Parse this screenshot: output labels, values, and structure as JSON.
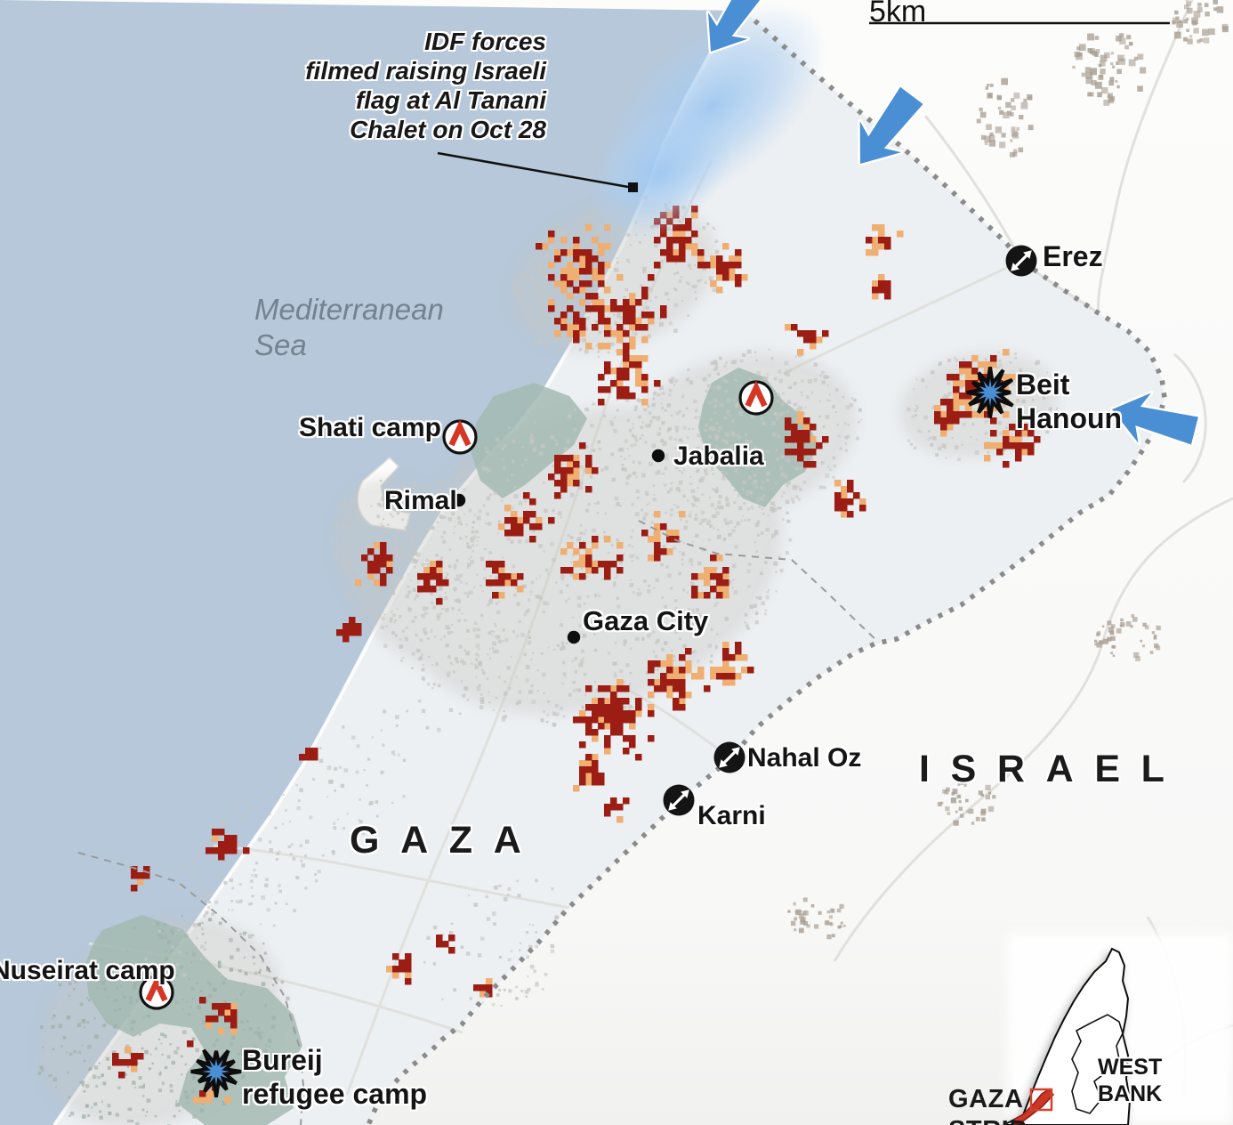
{
  "colors": {
    "sea": "#b6c8da",
    "gaza_land": "#edf0f3",
    "israel_land": "#fbfbfa",
    "destroyed": "#9c1d13",
    "damaged": "#efae72",
    "camp": "#a3bab1",
    "urban": "#c6c6c2",
    "town": "#a89e92",
    "border": "#8b8b8b",
    "road": "#e0e0dc",
    "arrow": "#4a8ed3",
    "chevron": "#d63625",
    "inset_red": "#cc3626"
  },
  "annotation": {
    "lines": [
      "IDF forces",
      "filmed raising Israeli",
      "flag at Al Tanani",
      "Chalet on Oct 28"
    ]
  },
  "sea": {
    "label": "Mediterranean Sea"
  },
  "scalebar": {
    "label": "5km"
  },
  "regions": {
    "gaza": "GAZA",
    "israel": "ISRAEL"
  },
  "cities": [
    {
      "label": "Jabalia"
    },
    {
      "label": "Rimal"
    },
    {
      "label": "Gaza City"
    }
  ],
  "camps": [
    {
      "label": "Shati camp"
    },
    {
      "label": "Nuseirat camp"
    }
  ],
  "crossings": [
    {
      "label": "Erez"
    },
    {
      "label": "Nahal Oz"
    },
    {
      "label": "Karni"
    }
  ],
  "battles": [
    {
      "label": "Beit Hanoun"
    },
    {
      "label": "Bureij refugee camp"
    }
  ],
  "inset": {
    "gaza": "GAZA STRIP",
    "west_bank": "WEST BANK"
  }
}
